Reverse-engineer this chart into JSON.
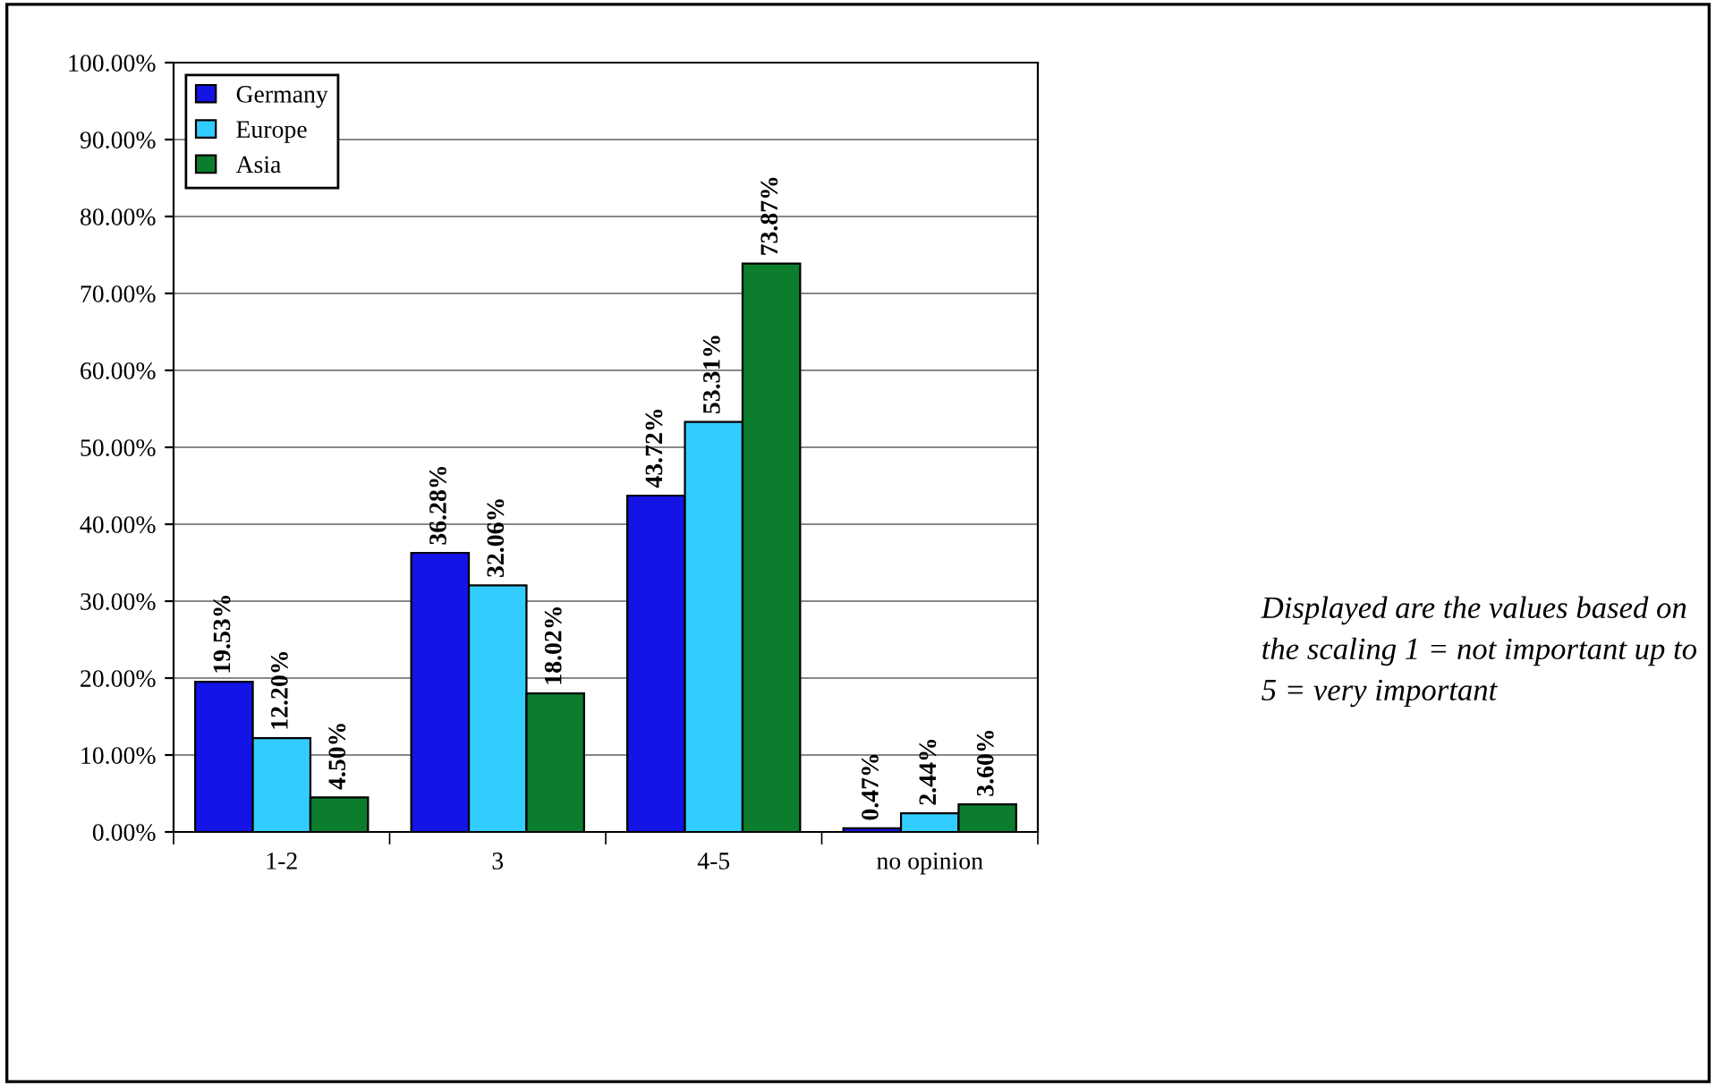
{
  "chart_data": {
    "type": "bar",
    "categories": [
      "1-2",
      "3",
      "4-5",
      "no opinion"
    ],
    "series": [
      {
        "name": "Germany",
        "color": "#1414e6",
        "values": [
          19.53,
          36.28,
          43.72,
          0.47
        ],
        "value_labels": [
          "19.53%",
          "36.28%",
          "43.72%",
          "0.47%"
        ]
      },
      {
        "name": "Europe",
        "color": "#33ccff",
        "values": [
          12.2,
          32.06,
          53.31,
          2.44
        ],
        "value_labels": [
          "12.20%",
          "32.06%",
          "53.31%",
          "2.44%"
        ]
      },
      {
        "name": "Asia",
        "color": "#0b7d2c",
        "values": [
          4.5,
          18.02,
          73.87,
          3.6
        ],
        "value_labels": [
          "4.50%",
          "18.02%",
          "73.87%",
          "3.60%"
        ]
      }
    ],
    "ylim": [
      0,
      100
    ],
    "yticks": [
      {
        "value": 0,
        "label": "0.00%"
      },
      {
        "value": 10,
        "label": "10.00%"
      },
      {
        "value": 20,
        "label": "20.00%"
      },
      {
        "value": 30,
        "label": "30.00%"
      },
      {
        "value": 40,
        "label": "40.00%"
      },
      {
        "value": 50,
        "label": "50.00%"
      },
      {
        "value": 60,
        "label": "60.00%"
      },
      {
        "value": 70,
        "label": "70.00%"
      },
      {
        "value": 80,
        "label": "80.00%"
      },
      {
        "value": 90,
        "label": "90.00%"
      },
      {
        "value": 100,
        "label": "100.00%"
      }
    ],
    "grid": "y",
    "legend": "top left",
    "annotations": [
      "Displayed are the values based on the scaling 1 = not important up to 5 = very important"
    ]
  }
}
